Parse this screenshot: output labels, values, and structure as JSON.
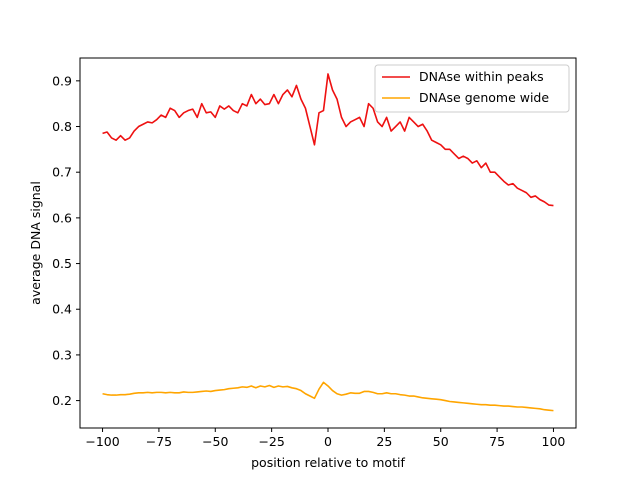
{
  "chart_data": {
    "type": "line",
    "xlabel": "position relative to motif",
    "ylabel": "average DNA signal",
    "xlim": [
      -110,
      110
    ],
    "ylim": [
      0.14,
      0.95
    ],
    "xticks": [
      -100,
      -75,
      -50,
      -25,
      0,
      25,
      50,
      75,
      100
    ],
    "xtick_labels": [
      "−100",
      "−75",
      "−50",
      "−25",
      "0",
      "25",
      "50",
      "75",
      "100"
    ],
    "yticks": [
      0.2,
      0.3,
      0.4,
      0.5,
      0.6,
      0.7,
      0.8,
      0.9
    ],
    "ytick_labels": [
      "0.2",
      "0.3",
      "0.4",
      "0.5",
      "0.6",
      "0.7",
      "0.8",
      "0.9"
    ],
    "grid": false,
    "legend_position": "top-right",
    "x": [
      -100,
      -98,
      -96,
      -94,
      -92,
      -90,
      -88,
      -86,
      -84,
      -82,
      -80,
      -78,
      -76,
      -74,
      -72,
      -70,
      -68,
      -66,
      -64,
      -62,
      -60,
      -58,
      -56,
      -54,
      -52,
      -50,
      -48,
      -46,
      -44,
      -42,
      -40,
      -38,
      -36,
      -34,
      -32,
      -30,
      -28,
      -26,
      -24,
      -22,
      -20,
      -18,
      -16,
      -14,
      -12,
      -10,
      -8,
      -6,
      -4,
      -2,
      0,
      2,
      4,
      6,
      8,
      10,
      12,
      14,
      16,
      18,
      20,
      22,
      24,
      26,
      28,
      30,
      32,
      34,
      36,
      38,
      40,
      42,
      44,
      46,
      48,
      50,
      52,
      54,
      56,
      58,
      60,
      62,
      64,
      66,
      68,
      70,
      72,
      74,
      76,
      78,
      80,
      82,
      84,
      86,
      88,
      90,
      92,
      94,
      96,
      98,
      100
    ],
    "series": [
      {
        "name": "DNAse within peaks",
        "color": "#ee1111",
        "values": [
          0.785,
          0.788,
          0.775,
          0.77,
          0.78,
          0.77,
          0.775,
          0.79,
          0.8,
          0.805,
          0.81,
          0.808,
          0.815,
          0.825,
          0.82,
          0.84,
          0.835,
          0.82,
          0.83,
          0.835,
          0.838,
          0.82,
          0.85,
          0.83,
          0.832,
          0.82,
          0.845,
          0.838,
          0.845,
          0.835,
          0.83,
          0.85,
          0.845,
          0.87,
          0.85,
          0.86,
          0.848,
          0.85,
          0.87,
          0.85,
          0.87,
          0.88,
          0.865,
          0.89,
          0.86,
          0.84,
          0.8,
          0.76,
          0.83,
          0.835,
          0.915,
          0.88,
          0.86,
          0.82,
          0.8,
          0.81,
          0.815,
          0.82,
          0.8,
          0.85,
          0.84,
          0.81,
          0.8,
          0.82,
          0.79,
          0.8,
          0.81,
          0.79,
          0.82,
          0.81,
          0.8,
          0.805,
          0.79,
          0.77,
          0.765,
          0.76,
          0.75,
          0.75,
          0.74,
          0.73,
          0.735,
          0.73,
          0.72,
          0.725,
          0.71,
          0.72,
          0.7,
          0.7,
          0.69,
          0.68,
          0.672,
          0.675,
          0.665,
          0.66,
          0.655,
          0.645,
          0.648,
          0.64,
          0.635,
          0.628,
          0.627
        ]
      },
      {
        "name": "DNAse genome wide",
        "color": "#ffa500",
        "values": [
          0.215,
          0.213,
          0.212,
          0.212,
          0.213,
          0.213,
          0.214,
          0.216,
          0.217,
          0.217,
          0.218,
          0.217,
          0.218,
          0.218,
          0.217,
          0.218,
          0.217,
          0.217,
          0.219,
          0.218,
          0.218,
          0.219,
          0.22,
          0.221,
          0.22,
          0.222,
          0.223,
          0.224,
          0.226,
          0.227,
          0.228,
          0.23,
          0.229,
          0.232,
          0.228,
          0.232,
          0.23,
          0.233,
          0.229,
          0.232,
          0.23,
          0.231,
          0.228,
          0.226,
          0.222,
          0.215,
          0.21,
          0.205,
          0.225,
          0.24,
          0.232,
          0.222,
          0.215,
          0.212,
          0.214,
          0.217,
          0.216,
          0.216,
          0.22,
          0.22,
          0.218,
          0.215,
          0.215,
          0.217,
          0.215,
          0.215,
          0.213,
          0.212,
          0.21,
          0.21,
          0.208,
          0.206,
          0.205,
          0.204,
          0.203,
          0.202,
          0.2,
          0.198,
          0.197,
          0.196,
          0.195,
          0.194,
          0.193,
          0.192,
          0.191,
          0.191,
          0.19,
          0.19,
          0.189,
          0.188,
          0.188,
          0.187,
          0.186,
          0.186,
          0.185,
          0.184,
          0.183,
          0.182,
          0.18,
          0.179,
          0.178
        ]
      }
    ]
  }
}
